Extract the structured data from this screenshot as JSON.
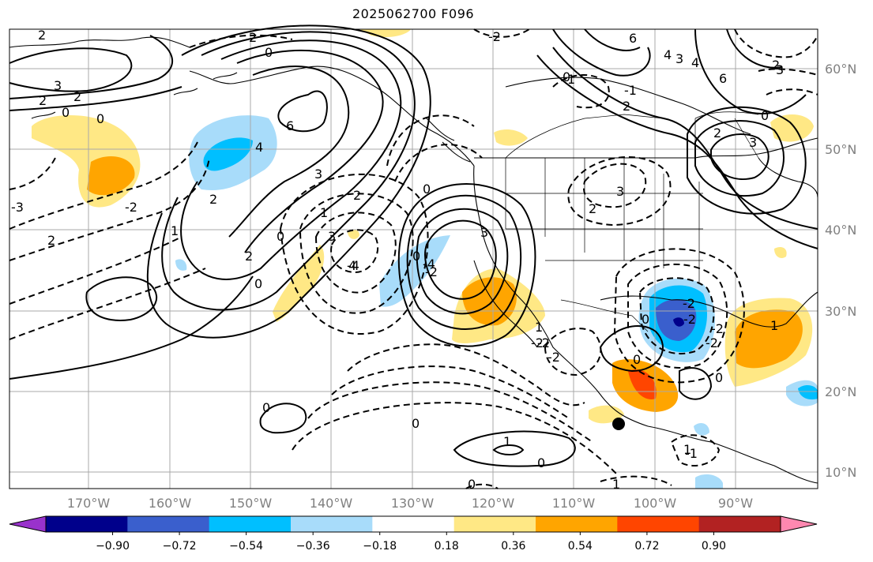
{
  "title": "2025062700 F096",
  "lat_labels": [
    "60°N",
    "50°N",
    "40°N",
    "30°N",
    "20°N",
    "10°N"
  ],
  "lon_labels": [
    "170°W",
    "160°W",
    "150°W",
    "140°W",
    "130°W",
    "120°W",
    "110°W",
    "100°W",
    "90°W"
  ],
  "colorbar": {
    "ticks": [
      "−0.90",
      "−0.72",
      "−0.54",
      "−0.36",
      "−0.18",
      "0.18",
      "0.36",
      "0.54",
      "0.72",
      "0.90"
    ],
    "colors": [
      "#9932cc",
      "#00008b",
      "#3a5fcd",
      "#00bfff",
      "#a8dcfa",
      "#ffffff",
      "#ffe885",
      "#ffa500",
      "#ff4500",
      "#b22222",
      "#ff88b0"
    ]
  },
  "contour_labels": [
    "2",
    "2",
    "2",
    "3",
    "2",
    "0",
    "0",
    "3",
    "6",
    "2",
    "1",
    "0",
    "0",
    "2",
    "0",
    "4",
    "3",
    "2",
    "1",
    "3",
    "0",
    "-2",
    "-2",
    "4",
    "1",
    "-2",
    "1",
    "3",
    "6",
    "3",
    "4",
    "0",
    "0",
    "0",
    "0",
    "2",
    "2",
    "0",
    "1",
    "0",
    "1",
    "1",
    "6",
    "4",
    "3",
    "2",
    "2",
    "0",
    "3",
    "-3",
    "-2",
    "-2",
    "0",
    "-4",
    "-4",
    "-2",
    "2",
    "-2",
    "1",
    "-1",
    "-2",
    "0",
    "-2",
    "0",
    "-1",
    "-2"
  ],
  "colors": {
    "fill_light_blue": "#a8dcfa",
    "fill_blue": "#00bfff",
    "fill_mid_blue": "#3a5fcd",
    "fill_navy": "#00008b",
    "fill_yellow": "#ffe885",
    "fill_orange": "#ffa500",
    "fill_red": "#ff4500"
  }
}
